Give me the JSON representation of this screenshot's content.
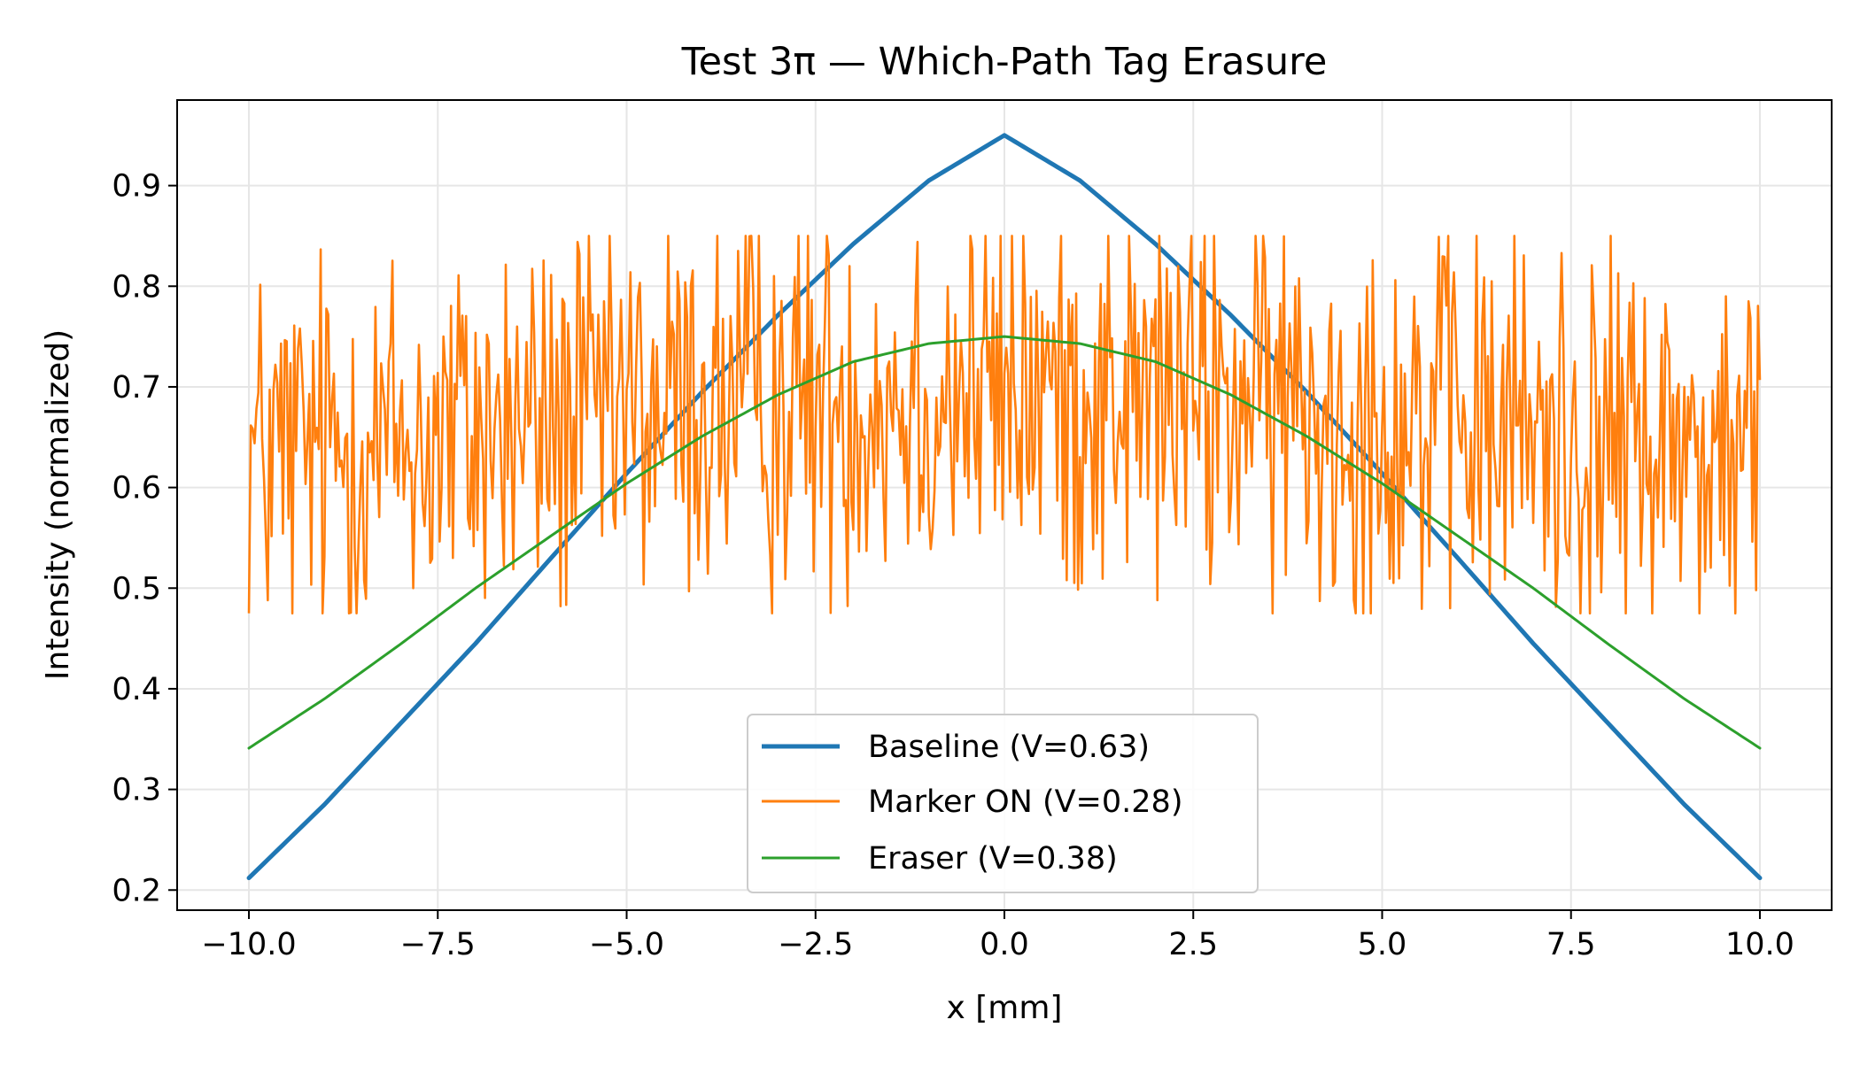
{
  "chart_data": {
    "type": "line",
    "title": "Test 3π — Which-Path Tag Erasure",
    "xlabel": "x [mm]",
    "ylabel": "Intensity (normalized)",
    "xlim": [
      -10.95,
      10.95
    ],
    "ylim": [
      0.18,
      0.985
    ],
    "x_range": [
      -10,
      10
    ],
    "xticks": [
      -10,
      -7.5,
      -5,
      -2.5,
      0,
      2.5,
      5,
      7.5,
      10
    ],
    "xtick_labels": [
      "−10.0",
      "−7.5",
      "−5.0",
      "−2.5",
      "0.0",
      "2.5",
      "5.0",
      "7.5",
      "10.0"
    ],
    "yticks": [
      0.2,
      0.3,
      0.4,
      0.5,
      0.6,
      0.7,
      0.8,
      0.9
    ],
    "ytick_labels": [
      "0.2",
      "0.3",
      "0.4",
      "0.5",
      "0.6",
      "0.7",
      "0.8",
      "0.9"
    ],
    "grid": true,
    "legend_position": "lower-center",
    "series": [
      {
        "name": "Baseline (V=0.63)",
        "color": "#1f77b4",
        "style": "smooth",
        "x": [
          -10,
          -9,
          -8,
          -7,
          -6,
          -5,
          -4,
          -3,
          -2,
          -1,
          0,
          1,
          2,
          3,
          4,
          5,
          6,
          7,
          8,
          9,
          10
        ],
        "y": [
          0.212,
          0.285,
          0.365,
          0.445,
          0.53,
          0.614,
          0.695,
          0.771,
          0.842,
          0.905,
          0.95,
          0.905,
          0.842,
          0.771,
          0.695,
          0.614,
          0.53,
          0.445,
          0.365,
          0.285,
          0.212
        ]
      },
      {
        "name": "Marker ON (V=0.28)",
        "color": "#ff7f0e",
        "style": "noisy",
        "x": [
          -10,
          -9,
          -8,
          -7,
          -6,
          -5,
          -4,
          -3,
          -2,
          -1,
          0,
          1,
          2,
          3,
          4,
          5,
          6,
          7,
          8,
          9,
          10
        ],
        "y_center": [
          0.63,
          0.637,
          0.645,
          0.654,
          0.663,
          0.672,
          0.68,
          0.686,
          0.691,
          0.694,
          0.695,
          0.694,
          0.691,
          0.686,
          0.68,
          0.672,
          0.663,
          0.654,
          0.645,
          0.637,
          0.63
        ],
        "y_min": 0.475,
        "y_max": 0.85
      },
      {
        "name": "Eraser (V=0.38)",
        "color": "#2ca02c",
        "style": "smooth",
        "x": [
          -10,
          -9,
          -8,
          -7,
          -6,
          -5,
          -4,
          -3,
          -2,
          -1,
          0,
          1,
          2,
          3,
          4,
          5,
          6,
          7,
          8,
          9,
          10
        ],
        "y": [
          0.341,
          0.39,
          0.444,
          0.5,
          0.552,
          0.604,
          0.651,
          0.692,
          0.725,
          0.743,
          0.75,
          0.743,
          0.725,
          0.692,
          0.651,
          0.604,
          0.552,
          0.5,
          0.444,
          0.39,
          0.341
        ]
      }
    ]
  }
}
